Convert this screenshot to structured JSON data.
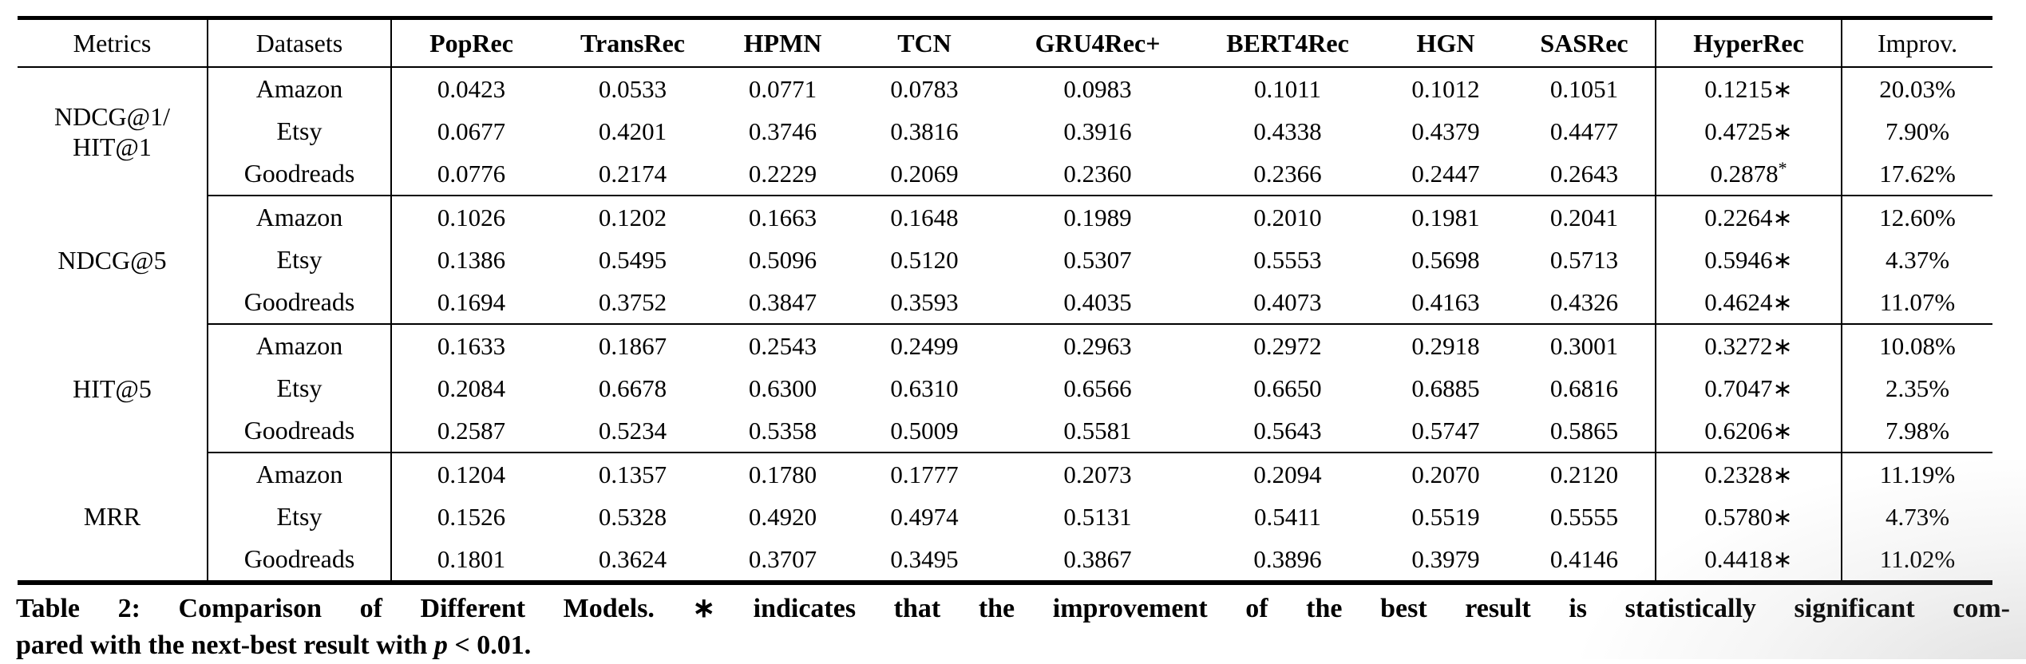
{
  "page": {
    "background": "#ffffff",
    "text_color": "#000000"
  },
  "table": {
    "header": {
      "metrics_label": "Metrics",
      "datasets_label": "Datasets",
      "model_columns": [
        "PopRec",
        "TransRec",
        "HPMN",
        "TCN",
        "GRU4Rec+",
        "BERT4Rec",
        "HGN",
        "SASRec"
      ],
      "hyperrec_label": "HyperRec",
      "improv_label": "Improv."
    },
    "groups": [
      {
        "metric_lines": [
          "NDCG@1/",
          "HIT@1"
        ],
        "rows": [
          {
            "dataset": "Amazon",
            "values": [
              "0.0423",
              "0.0533",
              "0.0771",
              "0.0783",
              "0.0983",
              "0.1011",
              "0.1012",
              "0.1051"
            ],
            "hyperrec": "0.1215",
            "marker": "∗",
            "marker_superscript": false,
            "improv": "20.03%"
          },
          {
            "dataset": "Etsy",
            "values": [
              "0.0677",
              "0.4201",
              "0.3746",
              "0.3816",
              "0.3916",
              "0.4338",
              "0.4379",
              "0.4477"
            ],
            "hyperrec": "0.4725",
            "marker": "∗",
            "marker_superscript": false,
            "improv": "7.90%"
          },
          {
            "dataset": "Goodreads",
            "values": [
              "0.0776",
              "0.2174",
              "0.2229",
              "0.2069",
              "0.2360",
              "0.2366",
              "0.2447",
              "0.2643"
            ],
            "hyperrec": "0.2878",
            "marker": "*",
            "marker_superscript": true,
            "improv": "17.62%"
          }
        ]
      },
      {
        "metric_lines": [
          "NDCG@5"
        ],
        "rows": [
          {
            "dataset": "Amazon",
            "values": [
              "0.1026",
              "0.1202",
              "0.1663",
              "0.1648",
              "0.1989",
              "0.2010",
              "0.1981",
              "0.2041"
            ],
            "hyperrec": "0.2264",
            "marker": "∗",
            "marker_superscript": false,
            "improv": "12.60%"
          },
          {
            "dataset": "Etsy",
            "values": [
              "0.1386",
              "0.5495",
              "0.5096",
              "0.5120",
              "0.5307",
              "0.5553",
              "0.5698",
              "0.5713"
            ],
            "hyperrec": "0.5946",
            "marker": "∗",
            "marker_superscript": false,
            "improv": "4.37%"
          },
          {
            "dataset": "Goodreads",
            "values": [
              "0.1694",
              "0.3752",
              "0.3847",
              "0.3593",
              "0.4035",
              "0.4073",
              "0.4163",
              "0.4326"
            ],
            "hyperrec": "0.4624",
            "marker": "∗",
            "marker_superscript": false,
            "improv": "11.07%"
          }
        ]
      },
      {
        "metric_lines": [
          "HIT@5"
        ],
        "rows": [
          {
            "dataset": "Amazon",
            "values": [
              "0.1633",
              "0.1867",
              "0.2543",
              "0.2499",
              "0.2963",
              "0.2972",
              "0.2918",
              "0.3001"
            ],
            "hyperrec": "0.3272",
            "marker": "∗",
            "marker_superscript": false,
            "improv": "10.08%"
          },
          {
            "dataset": "Etsy",
            "values": [
              "0.2084",
              "0.6678",
              "0.6300",
              "0.6310",
              "0.6566",
              "0.6650",
              "0.6885",
              "0.6816"
            ],
            "hyperrec": "0.7047",
            "marker": "∗",
            "marker_superscript": false,
            "improv": "2.35%"
          },
          {
            "dataset": "Goodreads",
            "values": [
              "0.2587",
              "0.5234",
              "0.5358",
              "0.5009",
              "0.5581",
              "0.5643",
              "0.5747",
              "0.5865"
            ],
            "hyperrec": "0.6206",
            "marker": "∗",
            "marker_superscript": false,
            "improv": "7.98%"
          }
        ]
      },
      {
        "metric_lines": [
          "MRR"
        ],
        "rows": [
          {
            "dataset": "Amazon",
            "values": [
              "0.1204",
              "0.1357",
              "0.1780",
              "0.1777",
              "0.2073",
              "0.2094",
              "0.2070",
              "0.2120"
            ],
            "hyperrec": "0.2328",
            "marker": "∗",
            "marker_superscript": false,
            "improv": "11.19%"
          },
          {
            "dataset": "Etsy",
            "values": [
              "0.1526",
              "0.5328",
              "0.4920",
              "0.4974",
              "0.5131",
              "0.5411",
              "0.5519",
              "0.5555"
            ],
            "hyperrec": "0.5780",
            "marker": "∗",
            "marker_superscript": false,
            "improv": "4.73%"
          },
          {
            "dataset": "Goodreads",
            "values": [
              "0.1801",
              "0.3624",
              "0.3707",
              "0.3495",
              "0.3867",
              "0.3896",
              "0.3979",
              "0.4146"
            ],
            "hyperrec": "0.4418",
            "marker": "∗",
            "marker_superscript": false,
            "improv": "11.02%"
          }
        ]
      }
    ]
  },
  "caption": {
    "line1": "Table 2: Comparison of Different Models. ∗ indicates that the improvement of the best result is statistically significant com-",
    "line2_pre": "pared with the next-best result with ",
    "p_symbol": "p",
    "line2_post": " < 0.01."
  }
}
